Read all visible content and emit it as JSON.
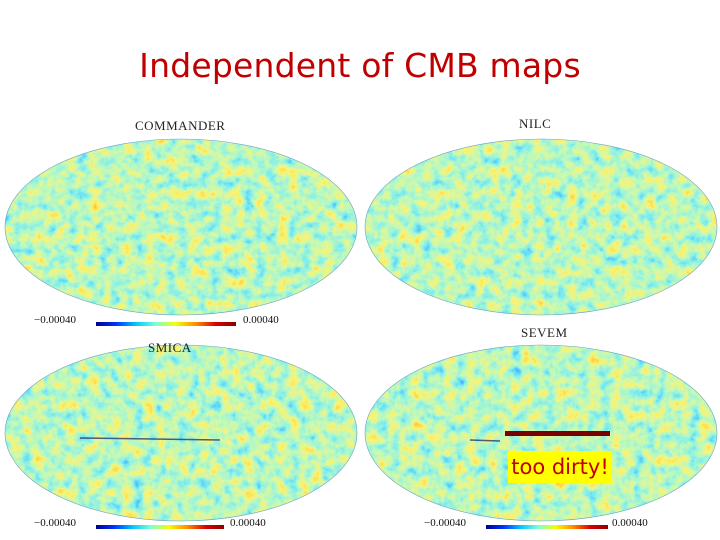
{
  "title": "Independent of CMB maps",
  "maps": [
    {
      "name": "COMMANDER",
      "scale_min": "−0.00040",
      "scale_max": "0.00040"
    },
    {
      "name": "NILC",
      "scale_min": "",
      "scale_max": ""
    },
    {
      "name": "SMICA",
      "scale_min": "−0.00040",
      "scale_max": "0.00040"
    },
    {
      "name": "SEVEM",
      "scale_min": "−0.00040",
      "scale_max": "0.00040"
    }
  ],
  "annotation": "too dirty!"
}
